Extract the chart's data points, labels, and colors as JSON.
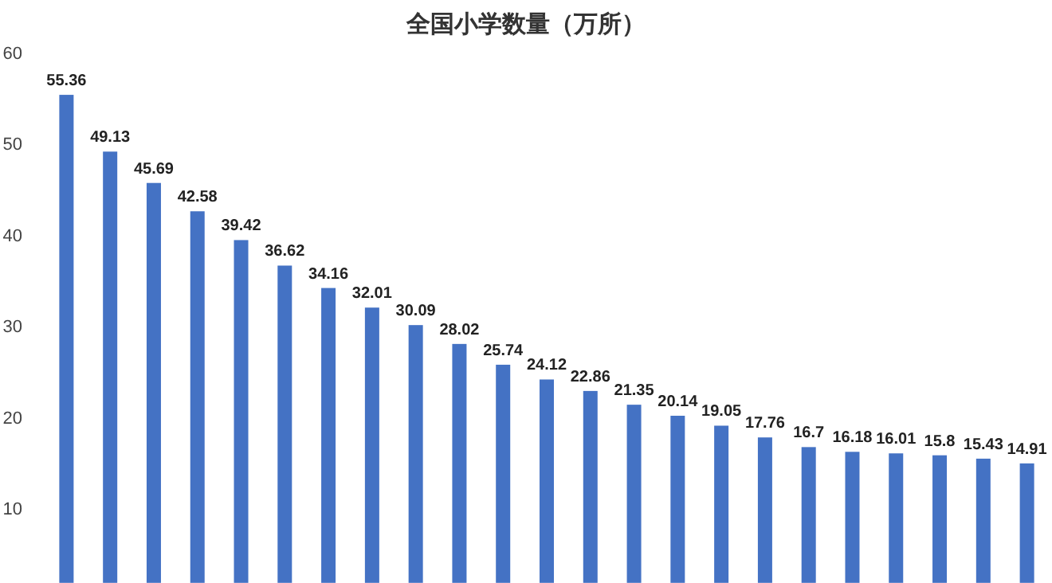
{
  "chart_data": {
    "type": "bar",
    "title": "全国小学数量（万所）",
    "categories": [
      null,
      null,
      null,
      null,
      null,
      null,
      null,
      null,
      null,
      null,
      null,
      null,
      null,
      null,
      null,
      null,
      null,
      null,
      null,
      null,
      null,
      null,
      null
    ],
    "values": [
      55.36,
      49.13,
      45.69,
      42.58,
      39.42,
      36.62,
      34.16,
      32.01,
      30.09,
      28.02,
      25.74,
      24.12,
      22.86,
      21.35,
      20.14,
      19.05,
      17.76,
      16.7,
      16.18,
      16.01,
      15.8,
      15.43,
      14.91
    ],
    "color": "#4472c4",
    "ylim": [
      1.8,
      60
    ],
    "yticks": [
      10,
      20,
      30,
      40,
      50,
      60
    ],
    "data_labels": true,
    "grid": false
  }
}
